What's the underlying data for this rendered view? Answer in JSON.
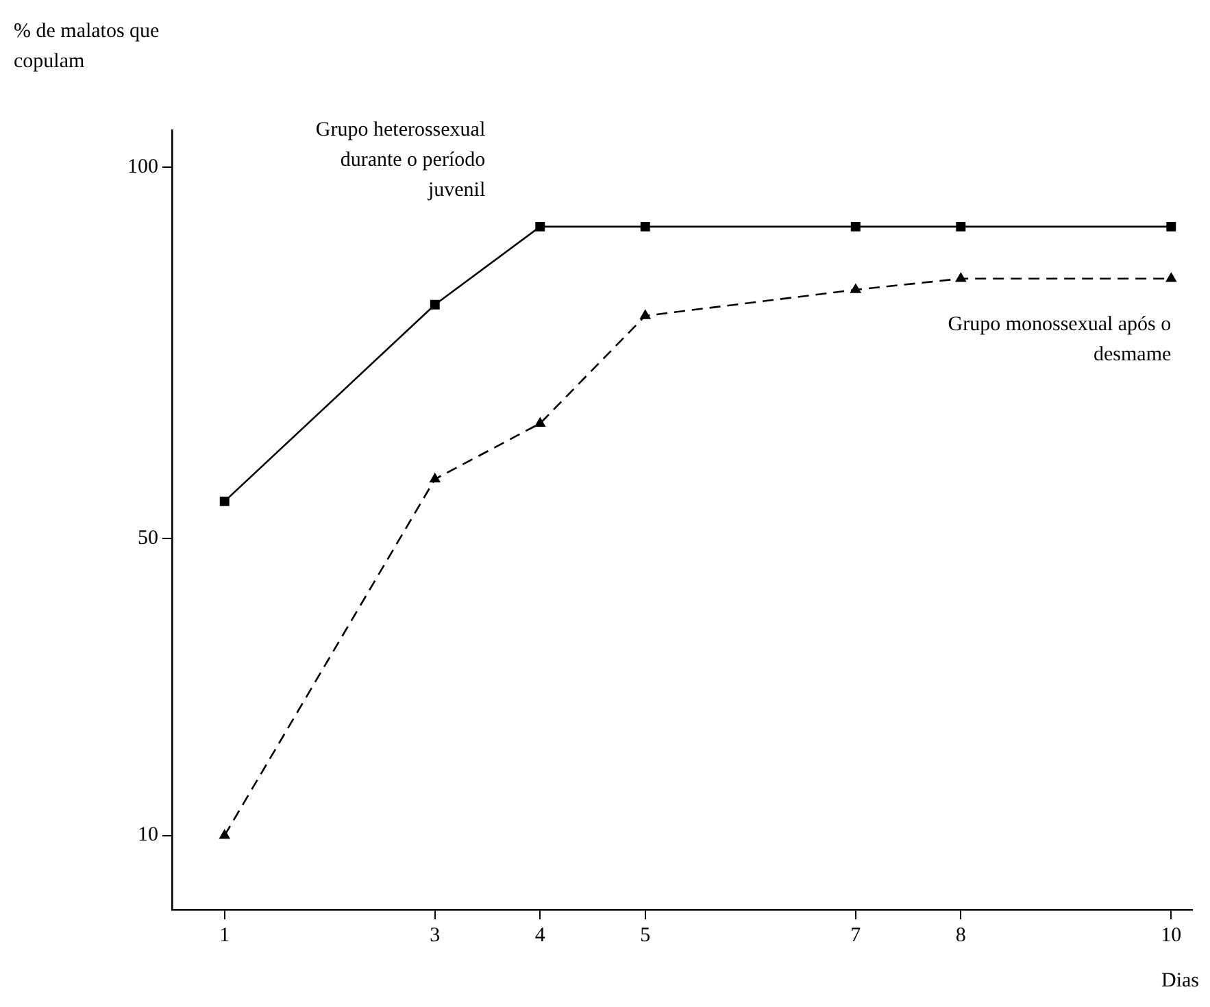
{
  "chart_data": {
    "type": "line",
    "ylabel": "% de malatos que copulam",
    "xlabel": "Dias",
    "xlim": [
      0.5,
      10.2
    ],
    "xticks": [
      1,
      3,
      4,
      5,
      7,
      8,
      10
    ],
    "ylim": [
      0,
      105
    ],
    "yticks": [
      10,
      50,
      100
    ],
    "grid": false,
    "legend": false,
    "x": [
      1,
      3,
      4,
      5,
      7,
      8,
      10
    ],
    "series": [
      {
        "name": "Grupo heterossexual durante o período juvenil",
        "color": "#000000",
        "values": [
          55,
          81.5,
          92,
          92,
          92,
          92,
          92
        ],
        "marker": "square",
        "line_style": "solid"
      },
      {
        "name": "Grupo monossexual após o desmame",
        "color": "#000000",
        "values": [
          10,
          58,
          65.5,
          80,
          83.5,
          85,
          85
        ],
        "marker": "triangle",
        "line_style": "dashed"
      }
    ]
  }
}
